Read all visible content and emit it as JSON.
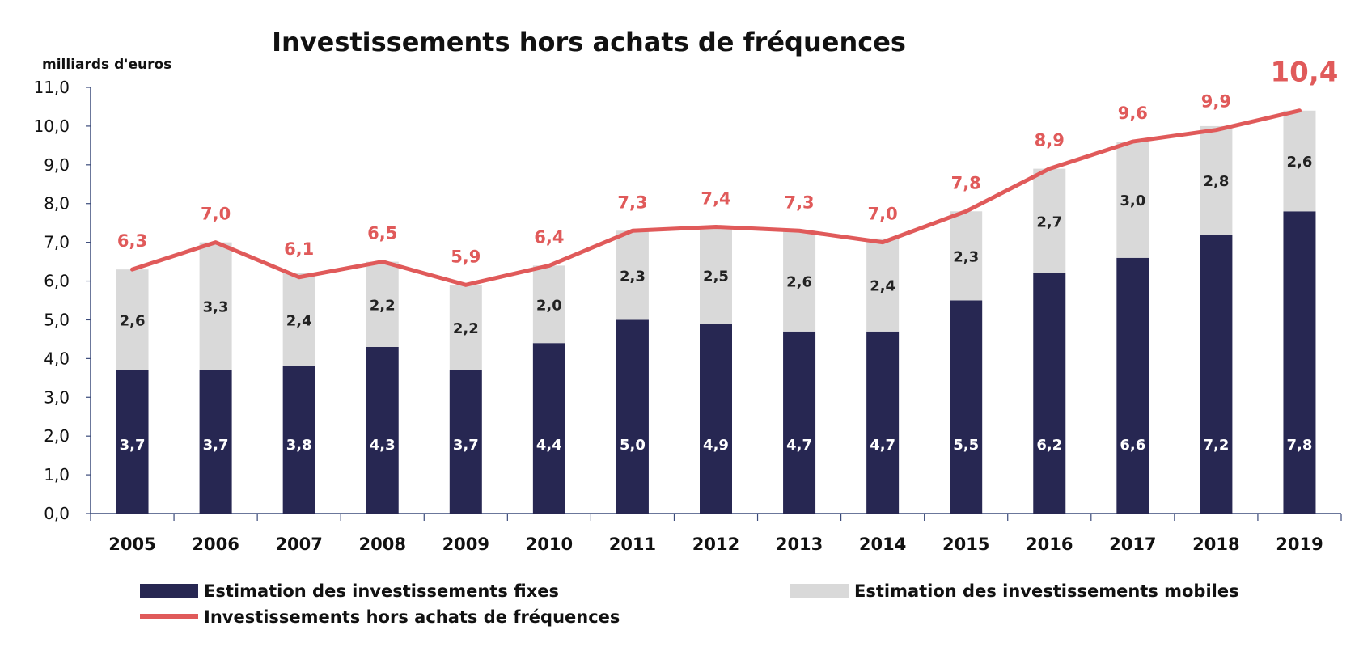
{
  "colors": {
    "fixed": "#272752",
    "mobile": "#d9d9d9",
    "total": "#e05a5a",
    "axis": "#3a4a7a"
  },
  "chart_data": {
    "type": "bar",
    "stacked": true,
    "title": "Investissements  hors achats de fréquences",
    "unit_label": "milliards d'euros",
    "categories": [
      "2005",
      "2006",
      "2007",
      "2008",
      "2009",
      "2010",
      "2011",
      "2012",
      "2013",
      "2014",
      "2015",
      "2016",
      "2017",
      "2018",
      "2019"
    ],
    "ylim": [
      0,
      11
    ],
    "yticks": [
      "0,0",
      "1,0",
      "2,0",
      "3,0",
      "4,0",
      "5,0",
      "6,0",
      "7,0",
      "8,0",
      "9,0",
      "10,0",
      "11,0"
    ],
    "grid": false,
    "legend_position": "bottom",
    "series": [
      {
        "name": "Estimation des investissements fixes",
        "type": "bar",
        "values": [
          3.7,
          3.7,
          3.8,
          4.3,
          3.7,
          4.4,
          5.0,
          4.9,
          4.7,
          4.7,
          5.5,
          6.2,
          6.6,
          7.2,
          7.8
        ],
        "labels": [
          "3,7",
          "3,7",
          "3,8",
          "4,3",
          "3,7",
          "4,4",
          "5,0",
          "4,9",
          "4,7",
          "4,7",
          "5,5",
          "6,2",
          "6,6",
          "7,2",
          "7,8"
        ]
      },
      {
        "name": "Estimation des investissements  mobiles",
        "type": "bar",
        "values": [
          2.6,
          3.3,
          2.4,
          2.2,
          2.2,
          2.0,
          2.3,
          2.5,
          2.6,
          2.4,
          2.3,
          2.7,
          3.0,
          2.8,
          2.6
        ],
        "labels": [
          "2,6",
          "3,3",
          "2,4",
          "2,2",
          "2,2",
          "2,0",
          "2,3",
          "2,5",
          "2,6",
          "2,4",
          "2,3",
          "2,7",
          "3,0",
          "2,8",
          "2,6"
        ]
      },
      {
        "name": "Investissements hors achats de fréquences",
        "type": "line",
        "values": [
          6.3,
          7.0,
          6.1,
          6.5,
          5.9,
          6.4,
          7.3,
          7.4,
          7.3,
          7.0,
          7.8,
          8.9,
          9.6,
          9.9,
          10.4
        ],
        "labels": [
          "6,3",
          "7,0",
          "6,1",
          "6,5",
          "5,9",
          "6,4",
          "7,3",
          "7,4",
          "7,3",
          "7,0",
          "7,8",
          "8,9",
          "9,6",
          "9,9",
          "10,4"
        ]
      }
    ]
  }
}
